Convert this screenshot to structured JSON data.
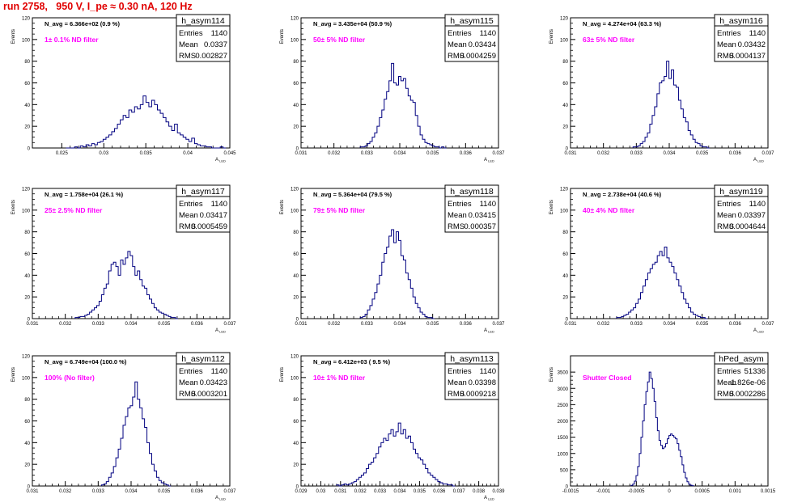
{
  "run_title": "run 2758,   950 V, I_pe ≈ 0.30 nA, 120 Hz",
  "colors": {
    "hist": "#000080",
    "annotation": "#ff00ff",
    "title": "#e00000",
    "frame": "#000000"
  },
  "chart_data": [
    {
      "type": "histogram",
      "title": "h_asym114",
      "ylabel": "Events",
      "xlabel": "A",
      "navg": "N_avg = 6.366e+02 (0.9 %)",
      "label": "1± 0.1% ND filter",
      "stats": {
        "entries": "1140",
        "mean": "0.0337",
        "rms": "0.002827"
      },
      "xlim": [
        0.0215,
        0.045
      ],
      "ylim": [
        0,
        120
      ],
      "yticks": [
        0,
        20,
        40,
        60,
        80,
        100,
        120
      ],
      "xticks": [
        "0.025",
        "0.03",
        "0.035",
        "0.04",
        "0.045"
      ],
      "xtick_values": [
        0.025,
        0.03,
        0.035,
        0.04,
        0.045
      ],
      "x_start": 0.0255,
      "bin_width": 0.00034,
      "counts": [
        0,
        0,
        0,
        1,
        0,
        2,
        1,
        3,
        2,
        4,
        3,
        5,
        6,
        8,
        10,
        12,
        15,
        18,
        22,
        26,
        30,
        28,
        35,
        33,
        38,
        36,
        40,
        48,
        42,
        38,
        44,
        40,
        35,
        32,
        28,
        24,
        20,
        16,
        22,
        14,
        12,
        10,
        8,
        6,
        9,
        4,
        3,
        2,
        2,
        1,
        1,
        0,
        0,
        0,
        1,
        0
      ]
    },
    {
      "type": "histogram",
      "title": "h_asym115",
      "ylabel": "Events",
      "xlabel": "A",
      "navg": "N_avg = 3.435e+04 (50.9 %)",
      "label": "50± 5% ND filter",
      "stats": {
        "entries": "1140",
        "mean": "0.03434",
        "rms": "0.0004259"
      },
      "xlim": [
        0.031,
        0.037
      ],
      "ylim": [
        0,
        120
      ],
      "yticks": [
        0,
        20,
        40,
        60,
        80,
        100,
        120
      ],
      "xticks": [
        "0.031",
        "0.032",
        "0.033",
        "0.034",
        "0.035",
        "0.036",
        "0.037"
      ],
      "xtick_values": [
        0.031,
        0.032,
        0.033,
        0.034,
        0.035,
        0.036,
        0.037
      ],
      "x_start": 0.0328,
      "bin_width": 7.27e-05,
      "counts": [
        1,
        1,
        2,
        4,
        6,
        10,
        14,
        20,
        28,
        35,
        45,
        52,
        62,
        78,
        60,
        58,
        66,
        62,
        64,
        55,
        48,
        44,
        42,
        30,
        20,
        12,
        8,
        5,
        4,
        3,
        2,
        1,
        1,
        0,
        1,
        0
      ]
    },
    {
      "type": "histogram",
      "title": "h_asym116",
      "ylabel": "Events",
      "xlabel": "A",
      "navg": "N_avg = 4.274e+04 (63.3 %)",
      "label": "63± 5% ND filter",
      "stats": {
        "entries": "1140",
        "mean": "0.03432",
        "rms": "0.0004137"
      },
      "xlim": [
        0.031,
        0.037
      ],
      "ylim": [
        0,
        120
      ],
      "yticks": [
        0,
        20,
        40,
        60,
        80,
        100,
        120
      ],
      "xticks": [
        "0.031",
        "0.032",
        "0.033",
        "0.034",
        "0.035",
        "0.036",
        "0.037"
      ],
      "xtick_values": [
        0.031,
        0.032,
        0.033,
        0.034,
        0.035,
        0.036,
        0.037
      ],
      "x_start": 0.0329,
      "bin_width": 7.27e-05,
      "counts": [
        1,
        1,
        2,
        4,
        6,
        10,
        14,
        22,
        30,
        38,
        50,
        60,
        62,
        66,
        80,
        64,
        72,
        58,
        56,
        44,
        36,
        28,
        24,
        16,
        12,
        8,
        5,
        4,
        2,
        1,
        1,
        0
      ]
    },
    {
      "type": "histogram",
      "title": "h_asym117",
      "ylabel": "Events",
      "xlabel": "A",
      "navg": "N_avg = 1.758e+04 (26.1 %)",
      "label": "25± 2.5% ND filter",
      "stats": {
        "entries": "1140",
        "mean": "0.03417",
        "rms": "0.0005459"
      },
      "xlim": [
        0.031,
        0.037
      ],
      "ylim": [
        0,
        120
      ],
      "yticks": [
        0,
        20,
        40,
        60,
        80,
        100,
        120
      ],
      "xticks": [
        "0.031",
        "0.032",
        "0.033",
        "0.034",
        "0.035",
        "0.036",
        "0.037"
      ],
      "xtick_values": [
        0.031,
        0.032,
        0.033,
        0.034,
        0.035,
        0.036,
        0.037
      ],
      "x_start": 0.0323,
      "bin_width": 7.27e-05,
      "counts": [
        1,
        1,
        2,
        2,
        3,
        4,
        6,
        8,
        10,
        12,
        16,
        22,
        28,
        32,
        44,
        50,
        52,
        48,
        40,
        54,
        50,
        56,
        62,
        58,
        48,
        40,
        44,
        36,
        30,
        28,
        22,
        18,
        14,
        10,
        8,
        6,
        5,
        4,
        3,
        2,
        1,
        1,
        0
      ]
    },
    {
      "type": "histogram",
      "title": "h_asym118",
      "ylabel": "Events",
      "xlabel": "A",
      "navg": "N_avg = 5.364e+04 (79.5 %)",
      "label": "79± 5% ND filter",
      "stats": {
        "entries": "1140",
        "mean": "0.03415",
        "rms": "0.000357"
      },
      "xlim": [
        0.031,
        0.037
      ],
      "ylim": [
        0,
        120
      ],
      "yticks": [
        0,
        20,
        40,
        60,
        80,
        100,
        120
      ],
      "xticks": [
        "0.031",
        "0.032",
        "0.033",
        "0.034",
        "0.035",
        "0.036",
        "0.037"
      ],
      "xtick_values": [
        0.031,
        0.032,
        0.033,
        0.034,
        0.035,
        0.036,
        0.037
      ],
      "x_start": 0.0328,
      "bin_width": 7.27e-05,
      "counts": [
        1,
        2,
        4,
        8,
        12,
        18,
        24,
        32,
        40,
        52,
        60,
        66,
        76,
        82,
        70,
        80,
        72,
        58,
        54,
        42,
        36,
        28,
        20,
        14,
        10,
        6,
        4,
        2,
        1,
        1,
        0
      ]
    },
    {
      "type": "histogram",
      "title": "h_asym119",
      "ylabel": "Events",
      "xlabel": "A",
      "navg": "N_avg = 2.738e+04 (40.6 %)",
      "label": "40± 4% ND filter",
      "stats": {
        "entries": "1140",
        "mean": "0.03397",
        "rms": "0.0004644"
      },
      "xlim": [
        0.031,
        0.037
      ],
      "ylim": [
        0,
        120
      ],
      "yticks": [
        0,
        20,
        40,
        60,
        80,
        100,
        120
      ],
      "xticks": [
        "0.031",
        "0.032",
        "0.033",
        "0.034",
        "0.035",
        "0.036",
        "0.037"
      ],
      "xtick_values": [
        0.031,
        0.032,
        0.033,
        0.034,
        0.035,
        0.036,
        0.037
      ],
      "x_start": 0.0324,
      "bin_width": 7.27e-05,
      "counts": [
        1,
        1,
        2,
        3,
        4,
        6,
        8,
        10,
        14,
        18,
        24,
        30,
        36,
        42,
        46,
        50,
        52,
        58,
        62,
        58,
        66,
        56,
        52,
        48,
        42,
        36,
        30,
        24,
        18,
        14,
        10,
        6,
        4,
        3,
        2,
        1,
        1,
        0
      ]
    },
    {
      "type": "histogram",
      "title": "h_asym112",
      "ylabel": "Events",
      "xlabel": "A",
      "navg": "N_avg = 6.749e+04 (100.0 %)",
      "label": "100% (No filter)",
      "stats": {
        "entries": "1140",
        "mean": "0.03423",
        "rms": "0.0003201"
      },
      "xlim": [
        0.031,
        0.037
      ],
      "ylim": [
        0,
        120
      ],
      "yticks": [
        0,
        20,
        40,
        60,
        80,
        100,
        120
      ],
      "xticks": [
        "0.031",
        "0.032",
        "0.033",
        "0.034",
        "0.035",
        "0.036",
        "0.037"
      ],
      "xtick_values": [
        0.031,
        0.032,
        0.033,
        0.034,
        0.035,
        0.036,
        0.037
      ],
      "x_start": 0.0331,
      "bin_width": 7.27e-05,
      "counts": [
        1,
        2,
        4,
        8,
        12,
        18,
        26,
        34,
        44,
        56,
        64,
        72,
        74,
        82,
        96,
        80,
        72,
        62,
        54,
        40,
        30,
        20,
        14,
        8,
        5,
        3,
        2,
        1,
        0
      ]
    },
    {
      "type": "histogram",
      "title": "h_asym113",
      "ylabel": "Events",
      "xlabel": "A",
      "navg": "N_avg = 6.412e+03 ( 9.5 %)",
      "label": "10± 1% ND filter",
      "stats": {
        "entries": "1140",
        "mean": "0.03398",
        "rms": "0.0009218"
      },
      "xlim": [
        0.029,
        0.039
      ],
      "ylim": [
        0,
        120
      ],
      "yticks": [
        0,
        20,
        40,
        60,
        80,
        100,
        120
      ],
      "xticks": [
        "0.029",
        "0.03",
        "0.031",
        "0.032",
        "0.033",
        "0.034",
        "0.035",
        "0.036",
        "0.037",
        "0.038",
        "0.039"
      ],
      "xtick_values": [
        0.029,
        0.03,
        0.031,
        0.032,
        0.033,
        0.034,
        0.035,
        0.036,
        0.037,
        0.038,
        0.039
      ],
      "x_start": 0.0308,
      "bin_width": 0.000125,
      "counts": [
        1,
        0,
        1,
        2,
        1,
        2,
        3,
        4,
        6,
        8,
        10,
        12,
        16,
        20,
        22,
        26,
        30,
        36,
        40,
        44,
        42,
        48,
        52,
        46,
        50,
        58,
        48,
        52,
        44,
        46,
        40,
        34,
        30,
        26,
        24,
        20,
        16,
        12,
        10,
        8,
        6,
        4,
        3,
        2,
        2,
        1,
        1,
        0
      ]
    },
    {
      "type": "histogram",
      "title": "hPed_asym",
      "ylabel": "Events",
      "xlabel": "",
      "navg": "",
      "label": "Shutter Closed",
      "stats": {
        "entries": "51336",
        "mean": "-1.826e-06",
        "rms": "0.0002286"
      },
      "xlim": [
        -0.0015,
        0.0015
      ],
      "ylim": [
        0,
        4000
      ],
      "yticks": [
        0,
        500,
        1000,
        1500,
        2000,
        2500,
        3000,
        3500
      ],
      "xticks": [
        "-0.0015",
        "-0.001",
        "-0.0005",
        "0",
        "0.0005",
        "0.001",
        "0.0015"
      ],
      "xtick_values": [
        -0.0015,
        -0.001,
        -0.0005,
        0,
        0.0005,
        0.001,
        0.0015
      ],
      "x_start": -0.00058,
      "bin_width": 2.5e-05,
      "counts": [
        20,
        60,
        150,
        320,
        600,
        1000,
        1500,
        2000,
        2500,
        2900,
        3200,
        3500,
        3300,
        3000,
        2600,
        2100,
        1700,
        1400,
        1250,
        1150,
        1200,
        1300,
        1450,
        1550,
        1600,
        1550,
        1500,
        1450,
        1300,
        1100,
        900,
        650,
        420,
        250,
        130,
        60,
        25,
        10
      ]
    }
  ]
}
